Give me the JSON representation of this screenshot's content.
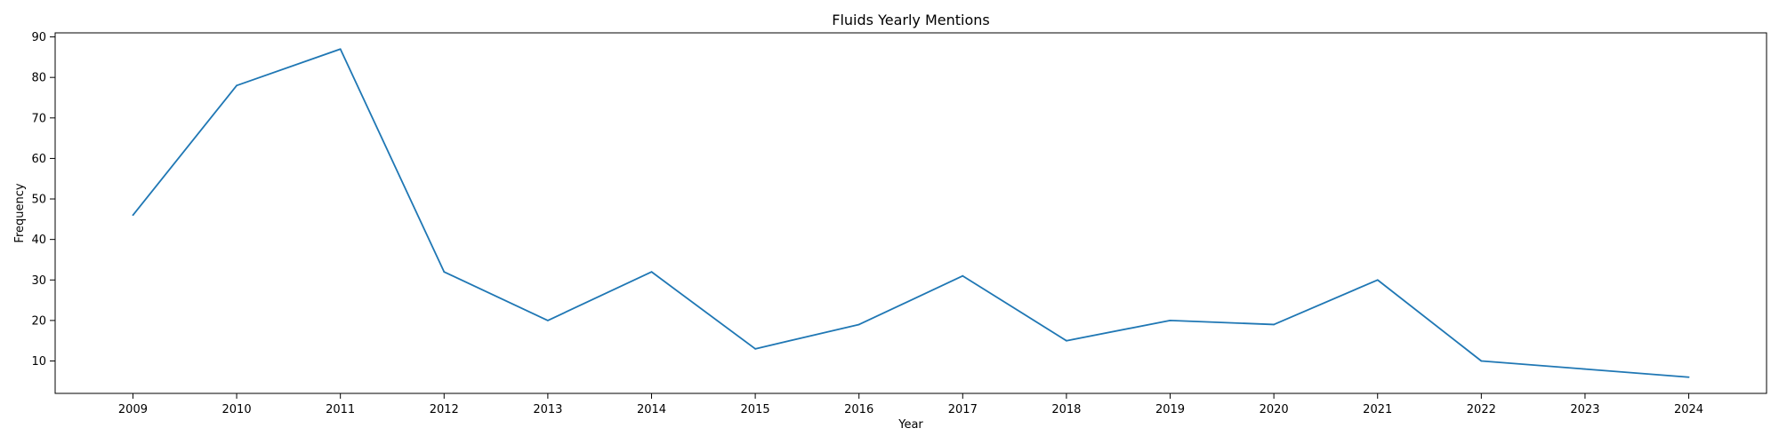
{
  "chart_data": {
    "type": "line",
    "title": "Fluids Yearly Mentions",
    "xlabel": "Year",
    "ylabel": "Frequency",
    "x": [
      2009,
      2010,
      2011,
      2012,
      2013,
      2014,
      2015,
      2016,
      2017,
      2018,
      2019,
      2020,
      2021,
      2022,
      2023,
      2024
    ],
    "series": [
      {
        "values": [
          46,
          78,
          87,
          32,
          20,
          32,
          13,
          19,
          31,
          15,
          20,
          19,
          30,
          10,
          8,
          6
        ],
        "color": "#1f77b4"
      }
    ],
    "xlim": [
      2008.25,
      2024.75
    ],
    "ylim": [
      2,
      91
    ],
    "yticks": [
      10,
      20,
      30,
      40,
      50,
      60,
      70,
      80,
      90
    ],
    "grid": false,
    "legend": "none"
  }
}
